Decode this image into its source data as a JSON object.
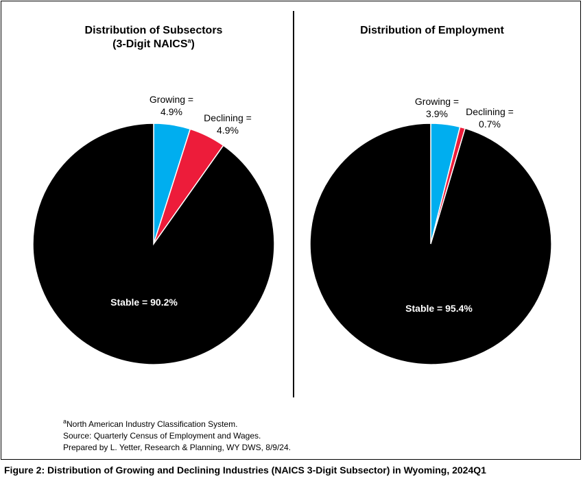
{
  "chart_data": [
    {
      "type": "pie",
      "title": "Distribution of Subsectors",
      "subtitle": "(3-Digit NAICS",
      "subtitle_sup": "a",
      "subtitle_end": ")",
      "slices": [
        {
          "name": "Growing",
          "value": 4.9,
          "color": "#00AEEF",
          "label_line1": "Growing =",
          "label_line2": "4.9%"
        },
        {
          "name": "Declining",
          "value": 4.9,
          "color": "#ED1C3A",
          "label_line1": "Declining =",
          "label_line2": "4.9%"
        },
        {
          "name": "Stable",
          "value": 90.2,
          "color": "#000000",
          "label_line1": "Stable = 90.2%"
        }
      ]
    },
    {
      "type": "pie",
      "title": "Distribution of Employment",
      "slices": [
        {
          "name": "Growing",
          "value": 3.9,
          "color": "#00AEEF",
          "label_line1": "Growing =",
          "label_line2": "3.9%"
        },
        {
          "name": "Declining",
          "value": 0.7,
          "color": "#ED1C3A",
          "label_line1": "Declining =",
          "label_line2": "0.7%"
        },
        {
          "name": "Stable",
          "value": 95.4,
          "color": "#000000",
          "label_line1": "Stable = 95.4%"
        }
      ]
    }
  ],
  "notes": {
    "footnote_sup": "a",
    "footnote": "North American Industry Classification System.",
    "source": "Source: Quarterly Census of Employment and Wages.",
    "prepared": "Prepared by L. Yetter, Research & Planning, WY DWS, 8/9/24."
  },
  "caption": "Figure 2: Distribution of Growing and Declining Industries (NAICS 3-Digit Subsector) in Wyoming, 2024Q1"
}
